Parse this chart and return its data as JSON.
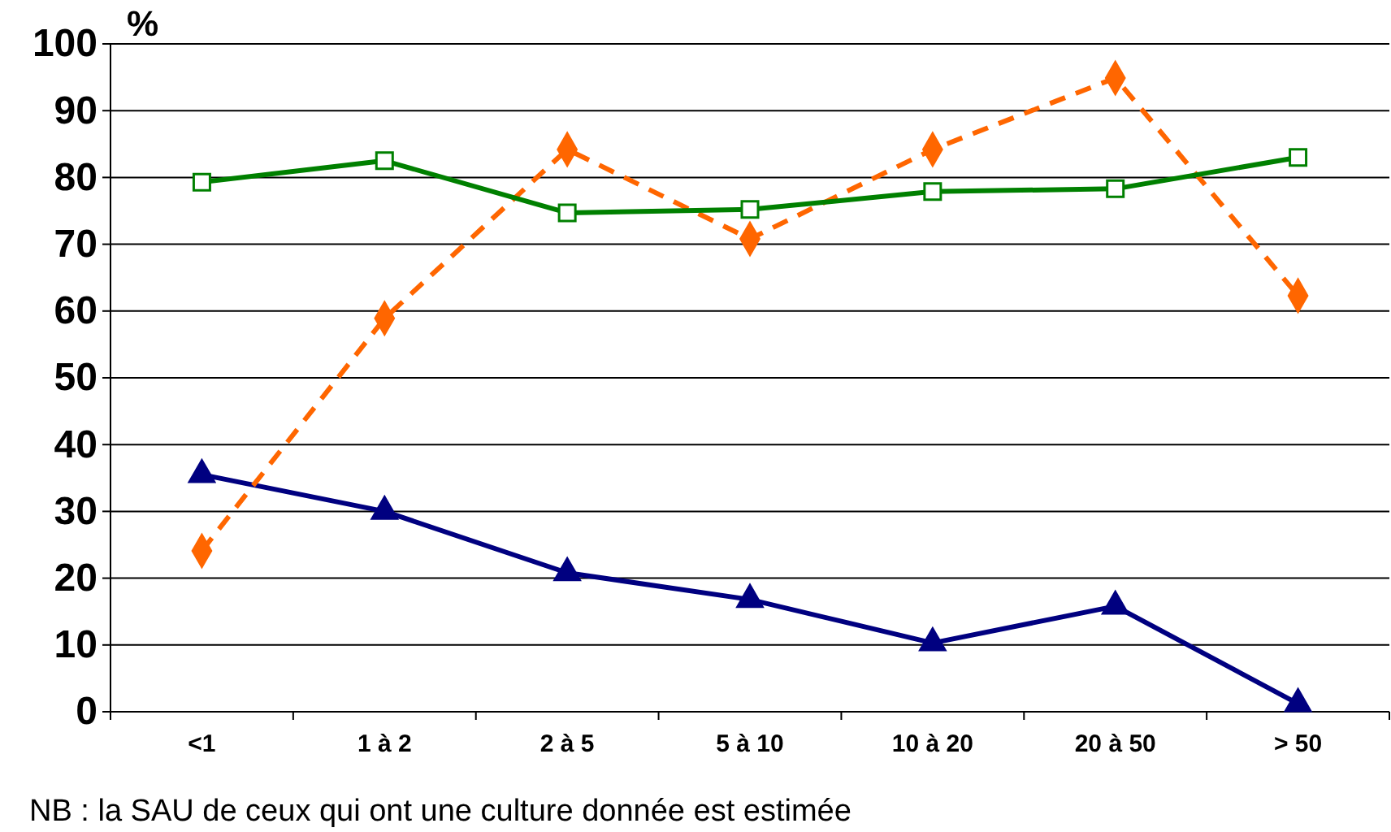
{
  "chart_data": {
    "type": "line",
    "ylabel": "%",
    "categories": [
      "<1",
      "1 à 2",
      "2 à 5",
      "5 à 10",
      "10 à 20",
      "20 à 50",
      "> 50"
    ],
    "series": [
      {
        "color": "#000080",
        "values": [
          35.5,
          30,
          20.8,
          16.8,
          10.3,
          15.8,
          1.2
        ],
        "marker": "triangle",
        "line_style": "solid"
      },
      {
        "color": "#ff6600",
        "values": [
          24.1,
          58.9,
          84.2,
          70.8,
          84.2,
          94.9,
          62.3
        ],
        "marker": "diamond",
        "line_style": "dashed"
      },
      {
        "color": "#008000",
        "values": [
          79.3,
          82.5,
          74.7,
          75.2,
          77.9,
          78.3,
          83
        ],
        "marker": "square",
        "line_style": "solid"
      }
    ],
    "ylim": [
      0,
      100
    ],
    "yticks": [
      0,
      10,
      20,
      30,
      40,
      50,
      60,
      70,
      80,
      90,
      100
    ],
    "grid": "y",
    "annotations": [
      "NB : la SAU de ceux qui ont une culture donnée est estimée"
    ]
  }
}
